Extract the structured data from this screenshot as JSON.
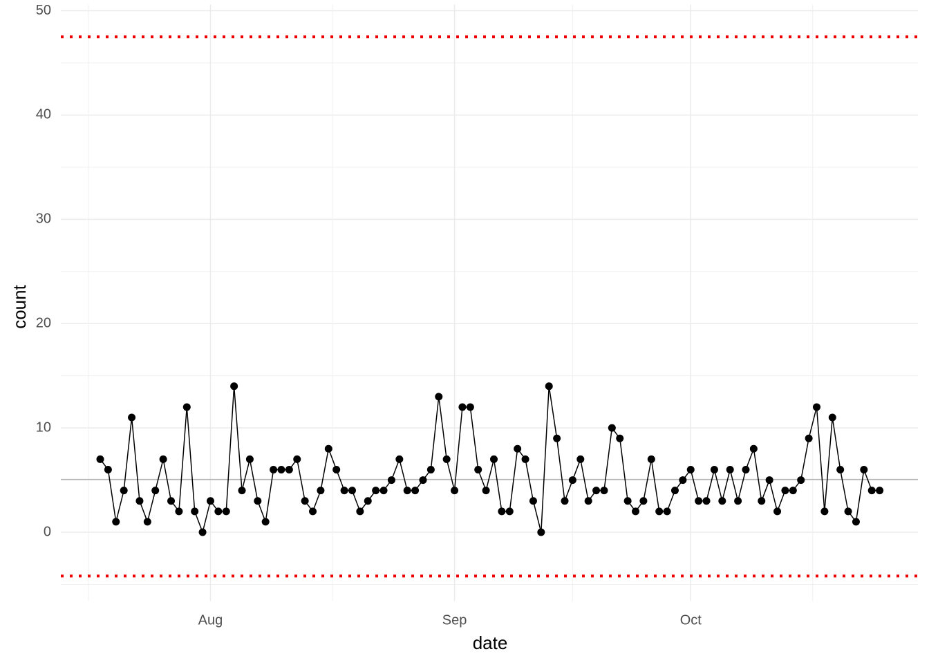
{
  "chart_data": {
    "type": "line",
    "x_label": "date",
    "y_label": "count",
    "categories": [
      null,
      null,
      null,
      null,
      null,
      null,
      null,
      null,
      null,
      null,
      null,
      null,
      null,
      null,
      "Aug",
      null,
      null,
      null,
      null,
      null,
      null,
      null,
      null,
      null,
      null,
      null,
      null,
      null,
      null,
      null,
      null,
      null,
      null,
      null,
      null,
      null,
      null,
      null,
      null,
      null,
      null,
      null,
      null,
      null,
      null,
      "Sep",
      null,
      null,
      null,
      null,
      null,
      null,
      null,
      null,
      null,
      null,
      null,
      null,
      null,
      null,
      null,
      null,
      null,
      null,
      null,
      null,
      null,
      null,
      null,
      null,
      null,
      null,
      null,
      null,
      null,
      "Oct",
      null,
      null,
      null,
      null,
      null,
      null,
      null,
      null,
      null,
      null,
      null,
      null,
      null,
      null,
      null,
      null,
      null,
      null,
      null,
      null,
      null,
      null,
      null,
      null
    ],
    "series": [
      {
        "color": "#000000",
        "values": [
          7,
          6,
          1,
          4,
          11,
          3,
          1,
          4,
          7,
          3,
          2,
          12,
          2,
          0,
          3,
          2,
          2,
          14,
          4,
          7,
          3,
          1,
          6,
          6,
          6,
          7,
          3,
          2,
          4,
          8,
          6,
          4,
          4,
          2,
          3,
          4,
          4,
          5,
          7,
          4,
          4,
          5,
          6,
          13,
          7,
          4,
          12,
          12,
          6,
          4,
          7,
          2,
          2,
          8,
          7,
          3,
          0,
          14,
          9,
          3,
          5,
          7,
          3,
          4,
          4,
          10,
          9,
          3,
          2,
          3,
          7,
          2,
          2,
          4,
          5,
          6,
          3,
          3,
          6,
          3,
          6,
          3,
          6,
          8,
          3,
          5,
          2,
          4,
          4,
          5,
          9,
          12,
          2,
          11,
          6,
          2,
          1,
          6,
          4,
          4
        ]
      }
    ],
    "reference_lines": [
      {
        "value": 5.06,
        "color": "#b3b3b3",
        "style": "solid"
      },
      {
        "value": 47.5,
        "color": "#ee0000",
        "style": "dotted"
      },
      {
        "value": -4.2,
        "color": "#ee0000",
        "style": "dotted"
      }
    ],
    "ylim": [
      -6.6,
      50.6
    ],
    "yticks": [
      0,
      10,
      20,
      30,
      40,
      50
    ],
    "grid": true
  }
}
